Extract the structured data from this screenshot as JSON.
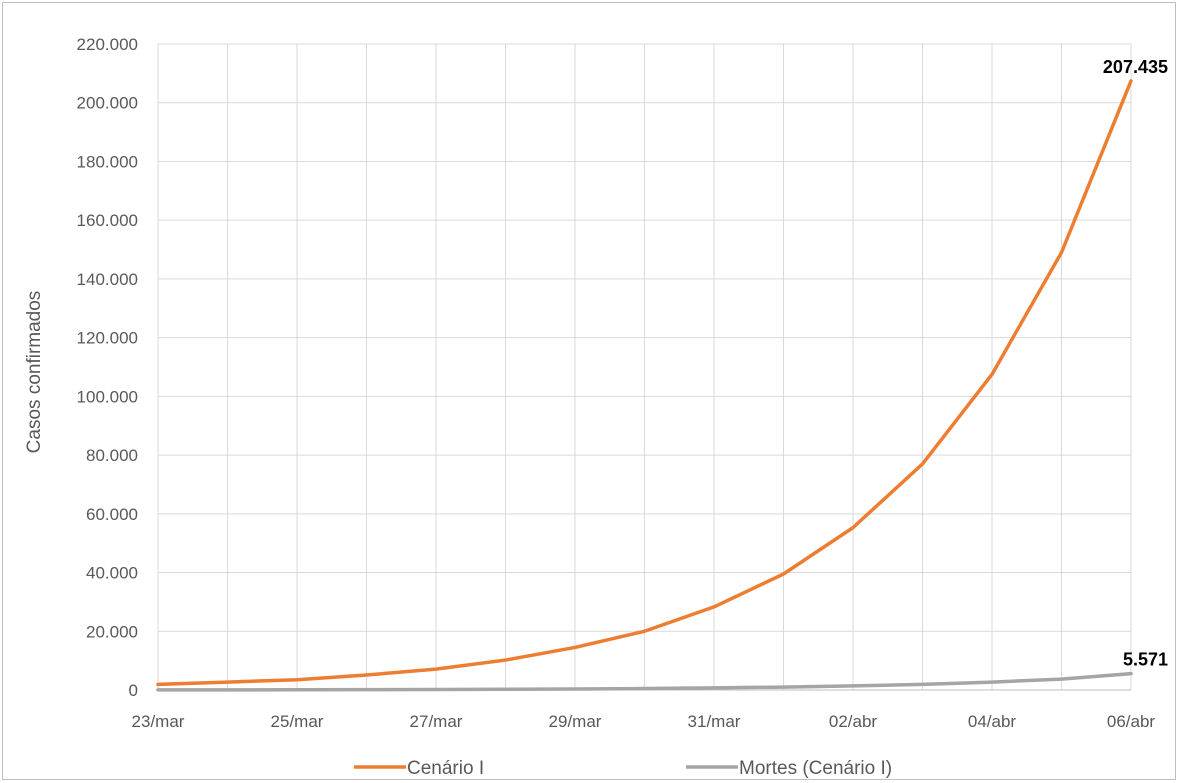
{
  "chart_data": {
    "type": "line",
    "title": "",
    "xlabel": "",
    "ylabel": "Casos confirmados",
    "categories": [
      "23/mar",
      "24/mar",
      "25/mar",
      "26/mar",
      "27/mar",
      "28/mar",
      "29/mar",
      "30/mar",
      "31/mar",
      "01/abr",
      "02/abr",
      "03/abr",
      "04/abr",
      "05/abr",
      "06/abr"
    ],
    "x_tick_labels": [
      "23/mar",
      "25/mar",
      "27/mar",
      "29/mar",
      "31/mar",
      "02/abr",
      "04/abr",
      "06/abr"
    ],
    "ylim": [
      0,
      220000
    ],
    "y_tick_labels": [
      "0",
      "20.000",
      "40.000",
      "60.000",
      "80.000",
      "100.000",
      "120.000",
      "140.000",
      "160.000",
      "180.000",
      "200.000",
      "220.000"
    ],
    "grid": true,
    "legend_position": "bottom",
    "series": [
      {
        "name": "Cenário I",
        "color": "#ED7D31",
        "values": [
          1900,
          2700,
          3500,
          5100,
          7100,
          10200,
          14500,
          20000,
          28300,
          39500,
          55300,
          77000,
          107500,
          149000,
          207435
        ],
        "end_label": "207.435"
      },
      {
        "name": "Mortes (Cenário I)",
        "color": "#A5A5A5",
        "values": [
          30,
          50,
          80,
          120,
          180,
          260,
          360,
          500,
          720,
          1000,
          1400,
          1900,
          2700,
          3700,
          5571
        ],
        "end_label": "5.571"
      }
    ]
  }
}
